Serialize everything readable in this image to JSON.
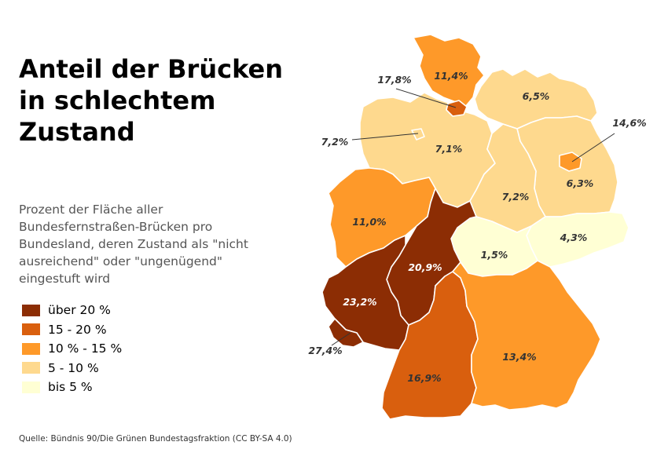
{
  "title": "Anteil der Brücken in schlechtem Zustand",
  "subtitle": "Prozent der Fläche aller Bundesfernstraßen-Brücken pro Bundesland, deren Zustand als \"nicht ausreichend\" oder \"ungenügend\" eingestuft wird",
  "source": "Quelle: Bündnis 90/Die Grünen Bundestagsfraktion (CC BY-SA 4.0)",
  "legend": [
    {
      "label": "über 20 %",
      "color": "#8c2d04"
    },
    {
      "label": "15 - 20 %",
      "color": "#d95f0e"
    },
    {
      "label": "10 % - 15 %",
      "color": "#fe9929"
    },
    {
      "label": "5 - 10 %",
      "color": "#fed98e"
    },
    {
      "label": "bis 5 %",
      "color": "#ffffd4"
    }
  ],
  "map": {
    "label_color_dark": "#333333",
    "label_color_light": "#ffffff",
    "regions": {
      "schleswig_holstein": {
        "value": 11.4,
        "label": "11,4%",
        "color": "#fe9929"
      },
      "hamburg": {
        "value": 17.8,
        "label": "17,8%",
        "color": "#d95f0e"
      },
      "mecklenburg_vorpommern": {
        "value": 6.5,
        "label": "6,5%",
        "color": "#fed98e"
      },
      "bremen": {
        "value": 7.2,
        "label": "7,2%",
        "color": "#fed98e"
      },
      "niedersachsen": {
        "value": 7.1,
        "label": "7,1%",
        "color": "#fed98e"
      },
      "berlin": {
        "value": 14.6,
        "label": "14,6%",
        "color": "#fe9929"
      },
      "brandenburg": {
        "value": 6.3,
        "label": "6,3%",
        "color": "#fed98e"
      },
      "sachsen_anhalt": {
        "value": 7.2,
        "label": "7,2%",
        "color": "#fed98e"
      },
      "nordrhein_westfalen": {
        "value": 11.0,
        "label": "11,0%",
        "color": "#fe9929"
      },
      "thueringen": {
        "value": 1.5,
        "label": "1,5%",
        "color": "#ffffd4"
      },
      "sachsen": {
        "value": 4.3,
        "label": "4,3%",
        "color": "#ffffd4"
      },
      "hessen": {
        "value": 20.9,
        "label": "20,9%",
        "color": "#8c2d04"
      },
      "rheinland_pfalz": {
        "value": 23.2,
        "label": "23,2%",
        "color": "#8c2d04"
      },
      "saarland": {
        "value": 27.4,
        "label": "27,4%",
        "color": "#8c2d04"
      },
      "baden_wuerttemberg": {
        "value": 16.9,
        "label": "16,9%",
        "color": "#d95f0e"
      },
      "bayern": {
        "value": 13.4,
        "label": "13,4%",
        "color": "#fe9929"
      }
    }
  }
}
